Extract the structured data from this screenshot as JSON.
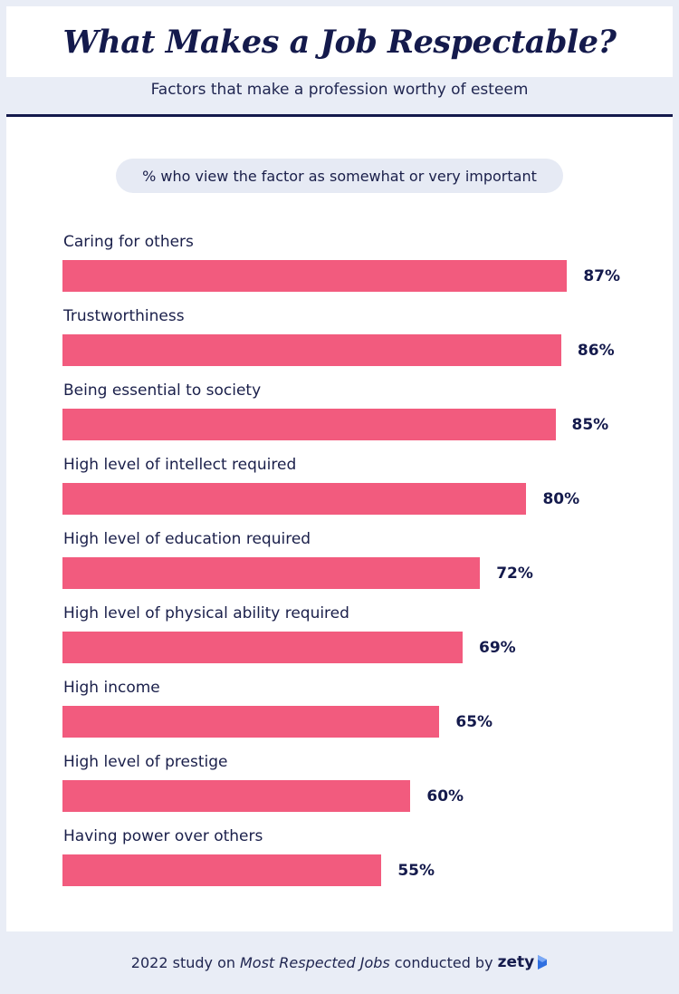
{
  "header": {
    "title": "What Makes a Job Respectable?",
    "subtitle": "Factors that make a profession worthy of esteem"
  },
  "legend_pill": "% who view the factor as somewhat or very important",
  "footer": {
    "prefix": "2022 study on",
    "study_name": "Most Respected Jobs",
    "suffix": "conducted by",
    "brand": "zety"
  },
  "colors": {
    "bar": "#f25b7e",
    "title": "#141a4c",
    "background": "#e9edf6",
    "brand_accent": "#2f6fe0"
  },
  "chart_data": {
    "type": "bar",
    "orientation": "horizontal",
    "title": "What Makes a Job Respectable?",
    "subtitle": "Factors that make a profession worthy of esteem",
    "xlabel": "",
    "ylabel": "",
    "xlim": [
      0,
      100
    ],
    "grid": false,
    "categories": [
      "Caring for others",
      "Trustworthiness",
      "Being essential to society",
      "High level of intellect required",
      "High level of education required",
      "High level of physical ability required",
      "High income",
      "High level of prestige",
      "Having power over others"
    ],
    "values": [
      87,
      86,
      85,
      80,
      72,
      69,
      65,
      60,
      55
    ],
    "value_labels": [
      "87%",
      "86%",
      "85%",
      "80%",
      "72%",
      "69%",
      "65%",
      "60%",
      "55%"
    ]
  }
}
